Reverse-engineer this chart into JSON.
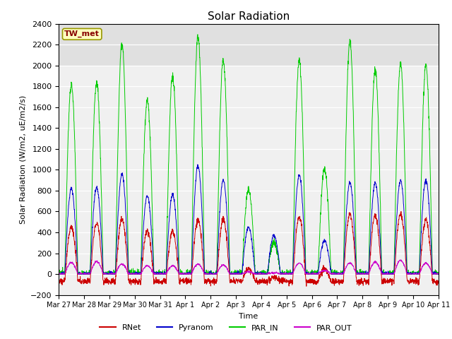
{
  "title": "Solar Radiation",
  "ylabel": "Solar Radiation (W/m2, uE/m2/s)",
  "xlabel": "Time",
  "ylim": [
    -200,
    2400
  ],
  "yticks": [
    -200,
    0,
    200,
    400,
    600,
    800,
    1000,
    1200,
    1400,
    1600,
    1800,
    2000,
    2200,
    2400
  ],
  "legend_labels": [
    "RNet",
    "Pyranom",
    "PAR_IN",
    "PAR_OUT"
  ],
  "station_label": "TW_met",
  "n_days": 15,
  "colors": {
    "RNet": "#cc0000",
    "Pyranom": "#0000cc",
    "PAR_IN": "#00cc00",
    "PAR_OUT": "#cc00cc"
  },
  "par_in_peaks": [
    1820,
    1840,
    2220,
    1660,
    1900,
    2280,
    2050,
    820,
    300,
    2050,
    1010,
    2230,
    1960,
    2010,
    2000
  ],
  "pyranom_peaks": [
    820,
    830,
    960,
    750,
    760,
    1040,
    900,
    450,
    370,
    950,
    320,
    880,
    870,
    900,
    900
  ],
  "rnet_peaks": [
    520,
    560,
    600,
    490,
    480,
    590,
    600,
    120,
    40,
    620,
    120,
    650,
    640,
    650,
    590
  ],
  "par_out_peaks": [
    110,
    120,
    95,
    78,
    80,
    95,
    85,
    22,
    12,
    105,
    32,
    105,
    115,
    130,
    105
  ]
}
